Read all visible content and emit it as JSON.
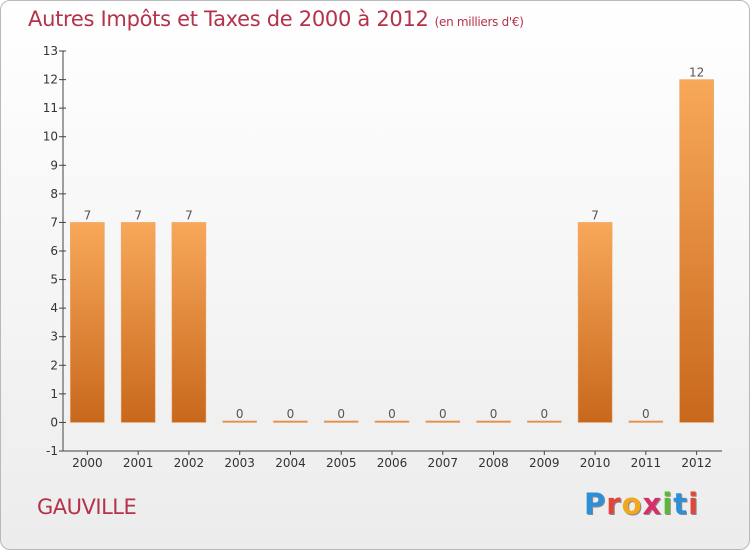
{
  "chart_data": {
    "type": "bar",
    "title": "Autres Impôts et Taxes de 2000 à 2012",
    "subtitle": "(en milliers d'€)",
    "categories": [
      "2000",
      "2001",
      "2002",
      "2003",
      "2004",
      "2005",
      "2006",
      "2007",
      "2008",
      "2009",
      "2010",
      "2011",
      "2012"
    ],
    "values": [
      7,
      7,
      7,
      0,
      0,
      0,
      0,
      0,
      0,
      0,
      7,
      0,
      12
    ],
    "data_labels": [
      "7",
      "7",
      "7",
      "0",
      "0",
      "0",
      "0",
      "0",
      "0",
      "0",
      "7",
      "0",
      "12"
    ],
    "ylim": [
      -1,
      13
    ],
    "yticks": [
      "-1",
      "0",
      "1",
      "2",
      "3",
      "4",
      "5",
      "6",
      "7",
      "8",
      "9",
      "10",
      "11",
      "12",
      "13"
    ],
    "grid": false,
    "bar_color": "#f29b45"
  },
  "footer": {
    "commune": "GAUVILLE",
    "brand_letters": [
      {
        "ch": "P",
        "color": "#2f8fd6"
      },
      {
        "ch": "r",
        "color": "#e0473a"
      },
      {
        "ch": "o",
        "color": "#f2a81d"
      },
      {
        "ch": "x",
        "color": "#d62f6b"
      },
      {
        "ch": "i",
        "color": "#5cb83a"
      },
      {
        "ch": "t",
        "color": "#2f8fd6"
      },
      {
        "ch": "i",
        "color": "#e0473a"
      }
    ]
  }
}
